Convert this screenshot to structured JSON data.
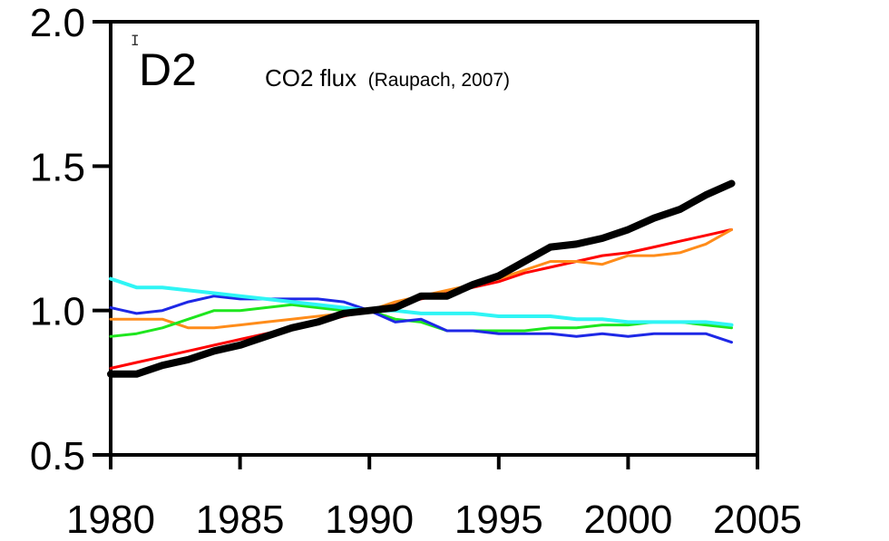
{
  "chart_data": {
    "type": "line",
    "panel_label": "D2",
    "title": "CO2 flux",
    "title_suffix": "(Raupach, 2007)",
    "xlabel": "",
    "ylabel": "",
    "xlim": [
      1980,
      2005
    ],
    "ylim": [
      0.5,
      2.0
    ],
    "xticks": [
      "1980",
      "1985",
      "1990",
      "1995",
      "2000",
      "2005"
    ],
    "yticks": [
      "0.5",
      "1.0",
      "1.5",
      "2.0"
    ],
    "grid": false,
    "legend": "none",
    "x": [
      1980,
      1981,
      1982,
      1983,
      1984,
      1985,
      1986,
      1987,
      1988,
      1989,
      1990,
      1991,
      1992,
      1993,
      1994,
      1995,
      1996,
      1997,
      1998,
      1999,
      2000,
      2001,
      2002,
      2003,
      2004
    ],
    "series": [
      {
        "color": "#ff0000",
        "width": 3,
        "values": [
          0.8,
          0.82,
          0.84,
          0.86,
          0.88,
          0.9,
          0.92,
          0.94,
          0.96,
          0.98,
          1.0,
          1.02,
          1.04,
          1.06,
          1.08,
          1.1,
          1.13,
          1.15,
          1.17,
          1.19,
          1.2,
          1.22,
          1.24,
          1.26,
          1.28
        ]
      },
      {
        "color": "#ff8c1a",
        "width": 3,
        "values": [
          0.97,
          0.97,
          0.97,
          0.94,
          0.94,
          0.95,
          0.96,
          0.97,
          0.98,
          0.99,
          1.0,
          1.03,
          1.05,
          1.07,
          1.09,
          1.11,
          1.14,
          1.17,
          1.17,
          1.16,
          1.19,
          1.19,
          1.2,
          1.23,
          1.28
        ]
      },
      {
        "color": "#1ee61e",
        "width": 3,
        "values": [
          0.91,
          0.92,
          0.94,
          0.97,
          1.0,
          1.0,
          1.01,
          1.02,
          1.01,
          1.0,
          1.0,
          0.97,
          0.96,
          0.93,
          0.93,
          0.93,
          0.93,
          0.94,
          0.94,
          0.95,
          0.95,
          0.96,
          0.96,
          0.95,
          0.94
        ]
      },
      {
        "color": "#1e28e6",
        "width": 3,
        "values": [
          1.01,
          0.99,
          1.0,
          1.03,
          1.05,
          1.04,
          1.04,
          1.04,
          1.04,
          1.03,
          1.0,
          0.96,
          0.97,
          0.93,
          0.93,
          0.92,
          0.92,
          0.92,
          0.91,
          0.92,
          0.91,
          0.92,
          0.92,
          0.92,
          0.89
        ]
      },
      {
        "color": "#2ff5f5",
        "width": 4,
        "values": [
          1.11,
          1.08,
          1.08,
          1.07,
          1.06,
          1.05,
          1.04,
          1.03,
          1.02,
          1.01,
          1.0,
          1.0,
          0.99,
          0.99,
          0.99,
          0.98,
          0.98,
          0.98,
          0.97,
          0.97,
          0.96,
          0.96,
          0.96,
          0.96,
          0.95
        ]
      },
      {
        "color": "#000000",
        "width": 8,
        "values": [
          0.78,
          0.78,
          0.81,
          0.83,
          0.86,
          0.88,
          0.91,
          0.94,
          0.96,
          0.99,
          1.0,
          1.01,
          1.05,
          1.05,
          1.09,
          1.12,
          1.17,
          1.22,
          1.23,
          1.25,
          1.28,
          1.32,
          1.35,
          1.4,
          1.44
        ]
      }
    ]
  }
}
